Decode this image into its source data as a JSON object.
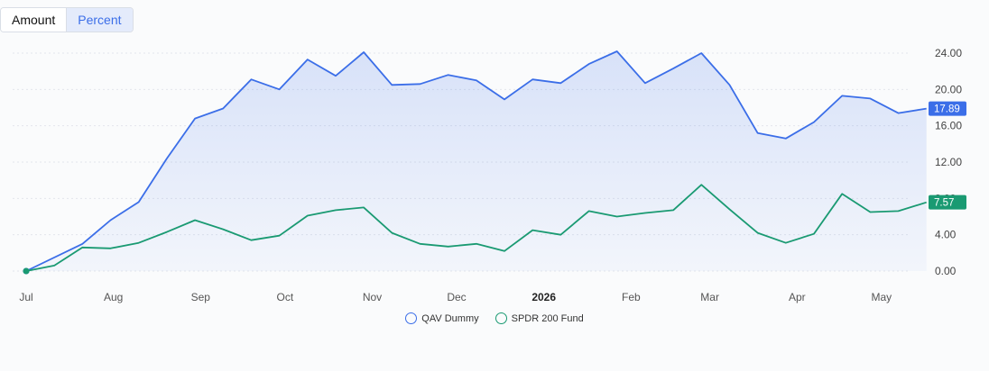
{
  "toggle": {
    "amount_label": "Amount",
    "percent_label": "Percent",
    "active": "Percent"
  },
  "chart_data": {
    "type": "area",
    "x_labels": [
      {
        "label": "Jul",
        "date": "2025-07-01"
      },
      {
        "label": "Aug",
        "date": "2025-08-01"
      },
      {
        "label": "Sep",
        "date": "2025-09-01"
      },
      {
        "label": "Oct",
        "date": "2025-10-01"
      },
      {
        "label": "Nov",
        "date": "2025-11-01"
      },
      {
        "label": "Dec",
        "date": "2025-12-01"
      },
      {
        "label": "2026",
        "date": "2026-01-01",
        "bold": true
      },
      {
        "label": "Feb",
        "date": "2026-02-01"
      },
      {
        "label": "Mar",
        "date": "2026-03-01"
      },
      {
        "label": "Apr",
        "date": "2026-04-01"
      },
      {
        "label": "May",
        "date": "2026-05-01"
      }
    ],
    "y_ticks": [
      "24.00",
      "20.00",
      "16.00",
      "12.00",
      "8.00",
      "4.00",
      "0.00"
    ],
    "ylim": [
      0,
      24
    ],
    "xlim": [
      "2025-07-01",
      "2026-05-11"
    ],
    "grid": true,
    "legend_position": "bottom-center",
    "series": [
      {
        "name": "QAV Dummy",
        "color": "#3b6ee8",
        "fill": true,
        "last_label": "17.89",
        "points": [
          [
            "2025-07-01",
            0.0
          ],
          [
            "2025-07-21",
            3.0
          ],
          [
            "2025-07-31",
            5.6
          ],
          [
            "2025-08-10",
            7.6
          ],
          [
            "2025-08-20",
            12.4
          ],
          [
            "2025-08-30",
            16.8
          ],
          [
            "2025-09-09",
            17.9
          ],
          [
            "2025-09-19",
            21.1
          ],
          [
            "2025-09-29",
            20.0
          ],
          [
            "2025-10-09",
            23.3
          ],
          [
            "2025-10-19",
            21.5
          ],
          [
            "2025-10-29",
            24.1
          ],
          [
            "2025-11-08",
            20.5
          ],
          [
            "2025-11-18",
            20.6
          ],
          [
            "2025-11-28",
            21.6
          ],
          [
            "2025-12-08",
            21.0
          ],
          [
            "2025-12-18",
            18.9
          ],
          [
            "2025-12-28",
            21.1
          ],
          [
            "2026-01-07",
            20.7
          ],
          [
            "2026-01-17",
            22.8
          ],
          [
            "2026-01-27",
            24.2
          ],
          [
            "2026-02-06",
            20.7
          ],
          [
            "2026-02-16",
            22.3
          ],
          [
            "2026-02-26",
            24.0
          ],
          [
            "2026-03-08",
            20.5
          ],
          [
            "2026-03-18",
            15.2
          ],
          [
            "2026-03-28",
            14.6
          ],
          [
            "2026-04-07",
            16.4
          ],
          [
            "2026-04-17",
            19.3
          ],
          [
            "2026-04-27",
            19.0
          ],
          [
            "2026-05-07",
            17.4
          ],
          [
            "2026-05-17",
            17.89
          ]
        ]
      },
      {
        "name": "SPDR 200 Fund",
        "color": "#1a9a72",
        "fill": false,
        "last_label": "7.57",
        "points": [
          [
            "2025-07-01",
            0.0
          ],
          [
            "2025-07-11",
            0.6
          ],
          [
            "2025-07-21",
            2.6
          ],
          [
            "2025-07-31",
            2.5
          ],
          [
            "2025-08-10",
            3.1
          ],
          [
            "2025-08-20",
            4.3
          ],
          [
            "2025-08-30",
            5.6
          ],
          [
            "2025-09-09",
            4.6
          ],
          [
            "2025-09-19",
            3.4
          ],
          [
            "2025-09-29",
            3.9
          ],
          [
            "2025-10-09",
            6.1
          ],
          [
            "2025-10-19",
            6.7
          ],
          [
            "2025-10-29",
            7.0
          ],
          [
            "2025-11-08",
            4.2
          ],
          [
            "2025-11-18",
            3.0
          ],
          [
            "2025-11-28",
            2.7
          ],
          [
            "2025-12-08",
            3.0
          ],
          [
            "2025-12-18",
            2.2
          ],
          [
            "2025-12-28",
            4.5
          ],
          [
            "2026-01-07",
            4.0
          ],
          [
            "2026-01-17",
            6.6
          ],
          [
            "2026-01-27",
            6.0
          ],
          [
            "2026-02-06",
            6.4
          ],
          [
            "2026-02-16",
            6.7
          ],
          [
            "2026-02-26",
            9.5
          ],
          [
            "2026-03-08",
            6.8
          ],
          [
            "2026-03-18",
            4.2
          ],
          [
            "2026-03-28",
            3.1
          ],
          [
            "2026-04-07",
            4.1
          ],
          [
            "2026-04-17",
            8.5
          ],
          [
            "2026-04-27",
            6.5
          ],
          [
            "2026-05-07",
            6.6
          ],
          [
            "2026-05-17",
            7.57
          ]
        ]
      }
    ]
  }
}
